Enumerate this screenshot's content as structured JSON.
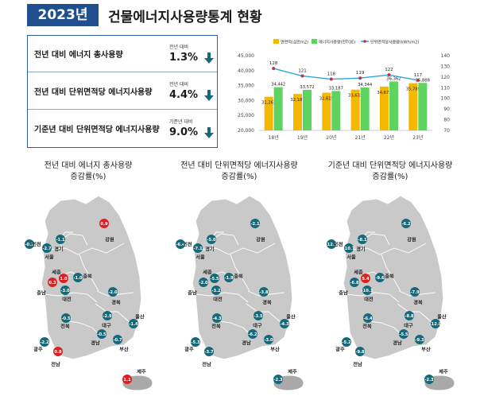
{
  "header": {
    "year": "2023년",
    "title": "건물에너지사용량통계 현황"
  },
  "stats": [
    {
      "label": "전년 대비 에너지 총사용량",
      "caption": "전년 대비",
      "value": "1.3%",
      "direction": "down"
    },
    {
      "label": "전년 대비 단위면적당 에너지사용량",
      "caption": "전년 대비",
      "value": "4.4%",
      "direction": "down"
    },
    {
      "label": "기준년 대비 단위면적당 에너지사용량",
      "caption": "기준년 대비",
      "value": "9.0%",
      "direction": "down"
    }
  ],
  "colors": {
    "navy": "#1f4f8f",
    "teal": "#16697a",
    "red": "#e02020",
    "bar_area": "#f5b800",
    "bar_energy": "#5fd35f",
    "line": "#29a8e0",
    "marker": "#c0304a",
    "land": "#c9c9c9",
    "land_dark": "#a9a9a9"
  },
  "chart_data": [
    {
      "type": "bar",
      "categories": [
        "18년",
        "19년",
        "20년",
        "21년",
        "22년",
        "23년"
      ],
      "series": [
        {
          "name": "연면적(십만m2)",
          "values": [
            31263,
            32187,
            32619,
            33632,
            34672,
            35789
          ],
          "axis": "left"
        },
        {
          "name": "에너지사용량(천TOE)",
          "values": [
            34442,
            33572,
            33187,
            34344,
            36362,
            35888
          ],
          "axis": "left"
        },
        {
          "name": "단위면적당사용량(kWh/m2)",
          "values": [
            128,
            121,
            118,
            119,
            122,
            117
          ],
          "axis": "right",
          "type": "line"
        }
      ],
      "ylim": [
        20000,
        45000
      ],
      "yticks": [
        "45,000",
        "40,000",
        "35,000",
        "30,000",
        "25,000",
        "20,000"
      ],
      "y2lim": [
        70,
        140
      ],
      "y2ticks": [
        "140",
        "130",
        "120",
        "110",
        "100",
        "90",
        "80",
        "70"
      ],
      "value_labels_bars": [
        "31,263",
        "32,187",
        "32,619",
        "33,632",
        "34,672",
        "35,789",
        "34,442",
        "33,572",
        "33,187",
        "34,344",
        "36,362",
        "35,888"
      ],
      "value_labels_line": [
        "128",
        "121",
        "118",
        "119",
        "122",
        "117"
      ],
      "legend": "top"
    },
    {
      "type": "map",
      "title_lines": [
        "전년 대비 에너지 총사용량",
        "증감률(%)"
      ],
      "regions": [
        {
          "name": "인천",
          "value": "-0.1"
        },
        {
          "name": "서울",
          "value": "-2.7"
        },
        {
          "name": "경기",
          "value": "-1.1"
        },
        {
          "name": "강원",
          "value": "0.9"
        },
        {
          "name": "세종",
          "value": "1.0"
        },
        {
          "name": "충남",
          "value": "0.3"
        },
        {
          "name": "충북",
          "value": "-1.0"
        },
        {
          "name": "대전",
          "value": "-3.0"
        },
        {
          "name": "경북",
          "value": "-2.0"
        },
        {
          "name": "대구",
          "value": "-2.9"
        },
        {
          "name": "울산",
          "value": "-1.4"
        },
        {
          "name": "전북",
          "value": "-0.5"
        },
        {
          "name": "경남",
          "value": "-0.5"
        },
        {
          "name": "광주",
          "value": "-2.2"
        },
        {
          "name": "전남",
          "value": "0.8"
        },
        {
          "name": "부산",
          "value": "-0.7"
        },
        {
          "name": "제주",
          "value": "1.1"
        }
      ]
    },
    {
      "type": "map",
      "title_lines": [
        "전년 대비 단위면적당 에너지사용량",
        "증감률(%)"
      ],
      "regions": [
        {
          "name": "인천",
          "value": "-6.4"
        },
        {
          "name": "서울",
          "value": "-7.1"
        },
        {
          "name": "경기",
          "value": "-5.0"
        },
        {
          "name": "강원",
          "value": "-2.1"
        },
        {
          "name": "세종",
          "value": "-5.5"
        },
        {
          "name": "충남",
          "value": "-2.0"
        },
        {
          "name": "충북",
          "value": "-1.9"
        },
        {
          "name": "대전",
          "value": "-3.2"
        },
        {
          "name": "경북",
          "value": "-3.8"
        },
        {
          "name": "대구",
          "value": "-3.5"
        },
        {
          "name": "울산",
          "value": "-4.3"
        },
        {
          "name": "전북",
          "value": "-4.3"
        },
        {
          "name": "경남",
          "value": "-6.2"
        },
        {
          "name": "광주",
          "value": "-5.3"
        },
        {
          "name": "전남",
          "value": "-3.7"
        },
        {
          "name": "부산",
          "value": "-3.0"
        },
        {
          "name": "제주",
          "value": "-2.3"
        }
      ]
    },
    {
      "type": "map",
      "title_lines": [
        "기준년 대비 단위면적당 에너지사용량",
        "증감률(%)"
      ],
      "regions": [
        {
          "name": "인천",
          "value": "-12.5"
        },
        {
          "name": "서울",
          "value": "-10.7"
        },
        {
          "name": "경기",
          "value": "-8.1"
        },
        {
          "name": "강원",
          "value": "-6.2"
        },
        {
          "name": "세종",
          "value": "5.4"
        },
        {
          "name": "충남",
          "value": "-6.8"
        },
        {
          "name": "충북",
          "value": "-9.6"
        },
        {
          "name": "대전",
          "value": "-10.1"
        },
        {
          "name": "경북",
          "value": "-7.9"
        },
        {
          "name": "대구",
          "value": "-8.8"
        },
        {
          "name": "울산",
          "value": "-12.0"
        },
        {
          "name": "전북",
          "value": "-6.4"
        },
        {
          "name": "경남",
          "value": "-5.5"
        },
        {
          "name": "광주",
          "value": "-5.2"
        },
        {
          "name": "전남",
          "value": "-9.8"
        },
        {
          "name": "부산",
          "value": "-9.3"
        },
        {
          "name": "제주",
          "value": "-2.3"
        }
      ]
    }
  ]
}
